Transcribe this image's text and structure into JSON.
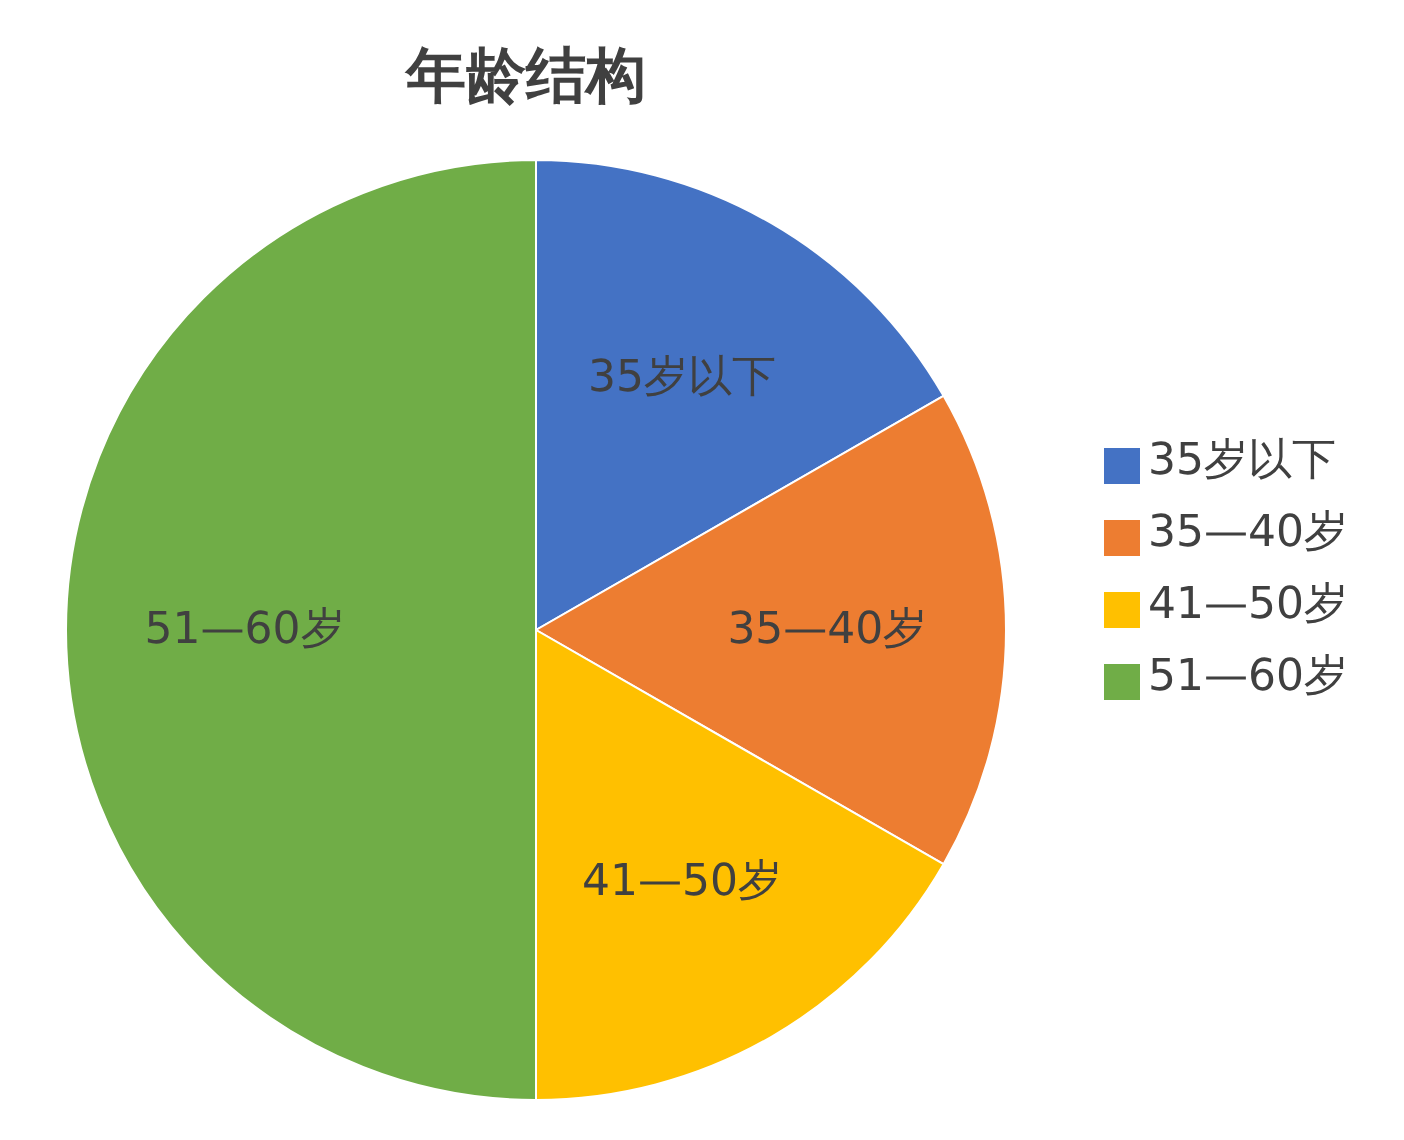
{
  "chart_data": {
    "type": "pie",
    "title": "年龄结构",
    "categories": [
      "35岁以下",
      "35—40岁",
      "41—50岁",
      "51—60岁"
    ],
    "values": [
      16.7,
      16.6,
      16.7,
      50
    ],
    "colors": [
      "#4472c4",
      "#ed7d31",
      "#ffc000",
      "#70ad47"
    ],
    "legend": "right"
  }
}
